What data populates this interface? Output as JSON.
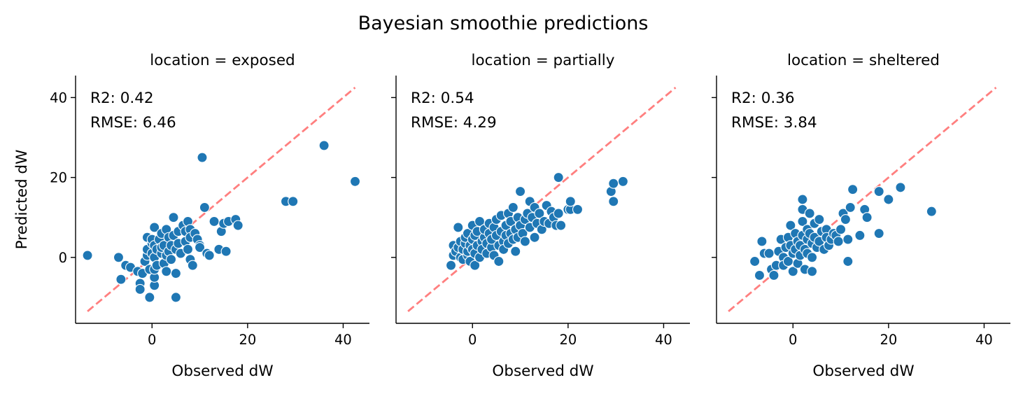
{
  "figure": {
    "title": "Bayesian smoothie predictions"
  },
  "colors": {
    "points": "#1f77b4",
    "identity_line": "#ff0000"
  },
  "chart_data": [
    {
      "type": "scatter",
      "title": "location = exposed",
      "xlabel": "Observed dW",
      "ylabel": "Predicted dW",
      "xlim": [
        -16,
        45.5
      ],
      "ylim": [
        -16.5,
        45.5
      ],
      "xticks": [
        0,
        20,
        40
      ],
      "yticks": [
        0,
        20,
        40
      ],
      "identity_line": [
        [
          -13.5,
          -13.5
        ],
        [
          42.5,
          42.5
        ]
      ],
      "stats": {
        "r2": "R2: 0.42",
        "rmse": "RMSE: 6.46"
      },
      "points": [
        [
          -13.5,
          0.5
        ],
        [
          -7,
          0
        ],
        [
          -6.5,
          -5.5
        ],
        [
          -5.5,
          -2
        ],
        [
          -4.5,
          -2.5
        ],
        [
          -3,
          -3.5
        ],
        [
          -2.5,
          -6.5
        ],
        [
          -2.5,
          -8
        ],
        [
          -2,
          -4
        ],
        [
          -1.5,
          -1
        ],
        [
          -1,
          0.5
        ],
        [
          -1,
          2
        ],
        [
          -1,
          5
        ],
        [
          -0.5,
          -10
        ],
        [
          -0.5,
          -3
        ],
        [
          0,
          1
        ],
        [
          0,
          3.5
        ],
        [
          0,
          4.5
        ],
        [
          0.5,
          -7
        ],
        [
          0.5,
          -5
        ],
        [
          0.5,
          -3
        ],
        [
          0.5,
          0
        ],
        [
          0.5,
          3
        ],
        [
          0.5,
          7.5
        ],
        [
          1,
          2
        ],
        [
          1,
          -2
        ],
        [
          1.5,
          4.5
        ],
        [
          2,
          1
        ],
        [
          2,
          2.5
        ],
        [
          2,
          6
        ],
        [
          2.5,
          -1.5
        ],
        [
          2.5,
          3
        ],
        [
          3,
          7
        ],
        [
          3,
          0.5
        ],
        [
          3,
          -3.5
        ],
        [
          3.5,
          5
        ],
        [
          3.5,
          1.5
        ],
        [
          4,
          3
        ],
        [
          4,
          -0.5
        ],
        [
          4.5,
          10
        ],
        [
          4.5,
          5.5
        ],
        [
          5,
          2
        ],
        [
          5,
          -4
        ],
        [
          5,
          -10
        ],
        [
          5.5,
          6.5
        ],
        [
          5.5,
          3.5
        ],
        [
          6,
          1
        ],
        [
          6.5,
          8
        ],
        [
          7,
          6.5
        ],
        [
          7,
          4
        ],
        [
          7.5,
          9
        ],
        [
          7.5,
          2
        ],
        [
          8,
          7
        ],
        [
          8,
          5
        ],
        [
          8,
          -0.5
        ],
        [
          8.5,
          -2
        ],
        [
          9,
          6
        ],
        [
          9.5,
          4.5
        ],
        [
          10,
          3
        ],
        [
          10,
          2.5
        ],
        [
          10.5,
          25
        ],
        [
          11,
          12.5
        ],
        [
          11.5,
          1
        ],
        [
          12,
          0.5
        ],
        [
          13,
          9
        ],
        [
          14,
          2
        ],
        [
          14.5,
          6.5
        ],
        [
          15,
          8.5
        ],
        [
          15.5,
          1.5
        ],
        [
          16,
          9
        ],
        [
          17.5,
          9.5
        ],
        [
          18,
          8
        ],
        [
          28,
          14
        ],
        [
          29.5,
          14
        ],
        [
          36,
          28
        ],
        [
          42.5,
          19
        ]
      ]
    },
    {
      "type": "scatter",
      "title": "location = partially",
      "xlabel": "Observed dW",
      "ylabel": "",
      "xlim": [
        -16,
        45.5
      ],
      "ylim": [
        -16.5,
        45.5
      ],
      "xticks": [
        0,
        20,
        40
      ],
      "yticks": [
        0,
        20,
        40
      ],
      "identity_line": [
        [
          -13.5,
          -13.5
        ],
        [
          42.5,
          42.5
        ]
      ],
      "stats": {
        "r2": "R2: 0.54",
        "rmse": "RMSE: 4.29"
      },
      "points": [
        [
          -4.5,
          -2
        ],
        [
          -4,
          0.5
        ],
        [
          -4,
          3
        ],
        [
          -3.5,
          1.5
        ],
        [
          -3,
          7.5
        ],
        [
          -3,
          2.5
        ],
        [
          -2.5,
          0
        ],
        [
          -2.5,
          4
        ],
        [
          -2,
          2
        ],
        [
          -2,
          -0.5
        ],
        [
          -1.5,
          3.5
        ],
        [
          -1.5,
          5
        ],
        [
          -1,
          0.5
        ],
        [
          -1,
          1.5
        ],
        [
          -1,
          6
        ],
        [
          -0.5,
          3
        ],
        [
          -0.5,
          -1
        ],
        [
          0,
          2
        ],
        [
          0,
          4.5
        ],
        [
          0,
          8
        ],
        [
          0.5,
          1
        ],
        [
          0.5,
          5.5
        ],
        [
          0.5,
          -2
        ],
        [
          1,
          3
        ],
        [
          1,
          6.5
        ],
        [
          1.5,
          9
        ],
        [
          1.5,
          0
        ],
        [
          2,
          4
        ],
        [
          2,
          2
        ],
        [
          2.5,
          5
        ],
        [
          2.5,
          7
        ],
        [
          3,
          1
        ],
        [
          3,
          3.5
        ],
        [
          3.5,
          6
        ],
        [
          3.5,
          8.5
        ],
        [
          4,
          2.5
        ],
        [
          4,
          4.5
        ],
        [
          4.5,
          7.5
        ],
        [
          4.5,
          0.5
        ],
        [
          5,
          5.5
        ],
        [
          5,
          9.5
        ],
        [
          5.5,
          3
        ],
        [
          5.5,
          -1
        ],
        [
          6,
          6.5
        ],
        [
          6,
          10.5
        ],
        [
          6.5,
          4
        ],
        [
          6.5,
          2
        ],
        [
          7,
          8
        ],
        [
          7,
          5.5
        ],
        [
          7.5,
          11
        ],
        [
          7.5,
          3.5
        ],
        [
          8,
          6
        ],
        [
          8,
          9
        ],
        [
          8.5,
          12.5
        ],
        [
          8.5,
          4.5
        ],
        [
          9,
          7
        ],
        [
          9,
          1.5
        ],
        [
          9.5,
          10
        ],
        [
          9.5,
          5
        ],
        [
          10,
          8
        ],
        [
          10,
          16.5
        ],
        [
          10.5,
          6
        ],
        [
          11,
          9.5
        ],
        [
          11,
          4
        ],
        [
          11.5,
          11
        ],
        [
          12,
          7.5
        ],
        [
          12,
          14
        ],
        [
          12.5,
          10
        ],
        [
          13,
          12.5
        ],
        [
          13,
          5
        ],
        [
          13.5,
          8.5
        ],
        [
          14,
          11
        ],
        [
          14.5,
          7
        ],
        [
          15,
          9
        ],
        [
          15.5,
          13
        ],
        [
          16,
          8.5
        ],
        [
          16.5,
          11.5
        ],
        [
          17,
          10
        ],
        [
          17.5,
          8
        ],
        [
          18,
          20
        ],
        [
          18,
          11
        ],
        [
          18.5,
          8
        ],
        [
          20,
          12
        ],
        [
          20.5,
          12
        ],
        [
          20.5,
          14
        ],
        [
          22,
          12
        ],
        [
          29,
          16.5
        ],
        [
          29.5,
          18.5
        ],
        [
          29.5,
          14
        ],
        [
          31.5,
          19
        ]
      ]
    },
    {
      "type": "scatter",
      "title": "location = sheltered",
      "xlabel": "Observed dW",
      "ylabel": "",
      "xlim": [
        -16,
        45.5
      ],
      "ylim": [
        -16.5,
        45.5
      ],
      "xticks": [
        0,
        20,
        40
      ],
      "yticks": [
        0,
        20,
        40
      ],
      "identity_line": [
        [
          -13.5,
          -13.5
        ],
        [
          42.5,
          42.5
        ]
      ],
      "stats": {
        "r2": "R2: 0.36",
        "rmse": "RMSE: 3.84"
      },
      "points": [
        [
          -8,
          -1
        ],
        [
          -7,
          -4.5
        ],
        [
          -6.5,
          4
        ],
        [
          -6,
          1
        ],
        [
          -5,
          1
        ],
        [
          -4.5,
          -3
        ],
        [
          -4,
          -4.5
        ],
        [
          -3.5,
          -2
        ],
        [
          -3,
          1.5
        ],
        [
          -2.5,
          4.5
        ],
        [
          -2,
          0
        ],
        [
          -2,
          -2
        ],
        [
          -1.5,
          2.5
        ],
        [
          -1,
          5
        ],
        [
          -1,
          -1
        ],
        [
          -0.5,
          3
        ],
        [
          -0.5,
          8
        ],
        [
          0,
          1
        ],
        [
          0,
          -3.5
        ],
        [
          0.5,
          2
        ],
        [
          0.5,
          6
        ],
        [
          1,
          4
        ],
        [
          1,
          -1.5
        ],
        [
          1.5,
          3
        ],
        [
          1.5,
          0.5
        ],
        [
          2,
          9
        ],
        [
          2,
          5.5
        ],
        [
          2,
          12
        ],
        [
          2,
          14.5
        ],
        [
          2.5,
          2
        ],
        [
          2.5,
          -3
        ],
        [
          3,
          7
        ],
        [
          3,
          4.5
        ],
        [
          3,
          1
        ],
        [
          3.5,
          11
        ],
        [
          3.5,
          6
        ],
        [
          4,
          3.5
        ],
        [
          4,
          0
        ],
        [
          4,
          -3.5
        ],
        [
          4.5,
          8.5
        ],
        [
          4.5,
          5
        ],
        [
          5,
          2.5
        ],
        [
          5.5,
          9.5
        ],
        [
          5.5,
          4
        ],
        [
          6,
          6.5
        ],
        [
          6.5,
          2
        ],
        [
          7,
          7
        ],
        [
          7,
          5
        ],
        [
          7.5,
          3
        ],
        [
          8,
          4.5
        ],
        [
          8.5,
          6
        ],
        [
          9,
          5.5
        ],
        [
          9.5,
          4
        ],
        [
          10,
          7
        ],
        [
          10.5,
          11
        ],
        [
          11,
          9.5
        ],
        [
          11.5,
          -1
        ],
        [
          11.5,
          4.5
        ],
        [
          12,
          12.5
        ],
        [
          12.5,
          17
        ],
        [
          14,
          5.5
        ],
        [
          15,
          12
        ],
        [
          15.5,
          10
        ],
        [
          18,
          16.5
        ],
        [
          18,
          6
        ],
        [
          20,
          14.5
        ],
        [
          22.5,
          17.5
        ],
        [
          29,
          11.5
        ]
      ]
    }
  ]
}
